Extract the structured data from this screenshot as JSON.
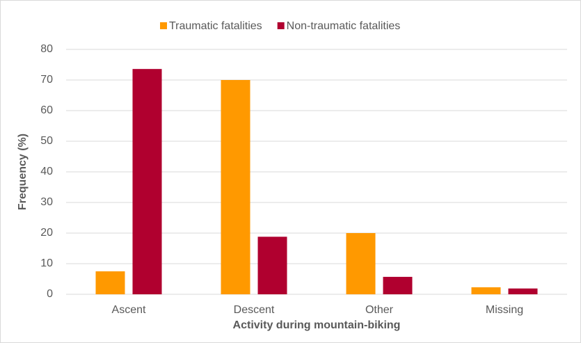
{
  "chart_data": {
    "type": "bar",
    "categories": [
      "Ascent",
      "Descent",
      "Other",
      "Missing"
    ],
    "series": [
      {
        "name": "Traumatic fatalities",
        "color": "#ff9900",
        "values": [
          7.5,
          70,
          20,
          2.3
        ]
      },
      {
        "name": "Non-traumatic fatalities",
        "color": "#b0002f",
        "values": [
          73.6,
          18.8,
          5.7,
          1.9
        ]
      }
    ],
    "ylabel": "Frequency (%)",
    "xlabel": "Activity during mountain-biking",
    "ylim": [
      0,
      80
    ],
    "yticks": [
      0,
      10,
      20,
      30,
      40,
      50,
      60,
      70,
      80
    ],
    "grid": true,
    "legend": "top"
  }
}
